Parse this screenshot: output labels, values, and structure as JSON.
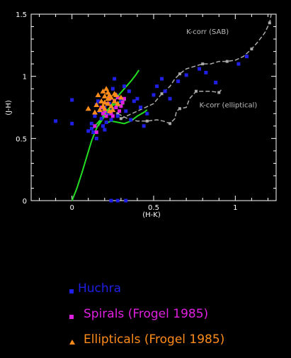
{
  "chart_data": {
    "type": "scatter",
    "title": "",
    "xlabel": "(H-K)",
    "ylabel": "(J-H)",
    "xlim": [
      -0.25,
      1.25
    ],
    "ylim": [
      0,
      1.5
    ],
    "x_ticks": [
      "0",
      "0.5",
      "1"
    ],
    "y_ticks": [
      "0",
      "0.5",
      "1",
      "1.5"
    ],
    "grid": false,
    "series": [
      {
        "name": "Huchra",
        "marker": "square",
        "color": "#1f1fe6",
        "points": [
          [
            0,
            0.81
          ],
          [
            -0.1,
            0.64
          ],
          [
            0.12,
            0.58
          ],
          [
            0.1,
            0.56
          ],
          [
            0.12,
            0.62
          ],
          [
            0.14,
            0.68
          ],
          [
            0.15,
            0.77
          ],
          [
            0.16,
            0.8
          ],
          [
            0.17,
            0.72
          ],
          [
            0.18,
            0.66
          ],
          [
            0.19,
            0.6
          ],
          [
            0.2,
            0.75
          ],
          [
            0.21,
            0.63
          ],
          [
            0.22,
            0.7
          ],
          [
            0.23,
            0.78
          ],
          [
            0.24,
            0.65
          ],
          [
            0.25,
            0.74
          ],
          [
            0.25,
            0.9
          ],
          [
            0.27,
            0.85
          ],
          [
            0.28,
            0.68
          ],
          [
            0.3,
            0.8
          ],
          [
            0.32,
            0.92
          ],
          [
            0.33,
            0.72
          ],
          [
            0.35,
            0.88
          ],
          [
            0.36,
            0.65
          ],
          [
            0.38,
            0.8
          ],
          [
            0.4,
            0.82
          ],
          [
            0.42,
            0.75
          ],
          [
            0.44,
            0.6
          ],
          [
            0.46,
            0.7
          ],
          [
            0.5,
            0.85
          ],
          [
            0.52,
            0.92
          ],
          [
            0.55,
            0.98
          ],
          [
            0.57,
            0.88
          ],
          [
            0.6,
            0.82
          ],
          [
            0.65,
            0.96
          ],
          [
            0.7,
            1.01
          ],
          [
            0.78,
            1.06
          ],
          [
            0.82,
            1.03
          ],
          [
            0.88,
            0.95
          ],
          [
            1.02,
            1.1
          ],
          [
            1.07,
            1.16
          ],
          [
            0.0,
            0.62
          ],
          [
            0.15,
            0.5
          ],
          [
            0.28,
            0.0
          ],
          [
            0.24,
            0.0
          ],
          [
            0.33,
            0.0
          ],
          [
            0.2,
            0.57
          ],
          [
            0.26,
            0.98
          ],
          [
            0.13,
            0.55
          ]
        ]
      },
      {
        "name": "Spirals (Frogel 1985)",
        "marker": "square",
        "color": "#e020e0",
        "points": [
          [
            0.18,
            0.75
          ],
          [
            0.2,
            0.72
          ],
          [
            0.22,
            0.78
          ],
          [
            0.24,
            0.7
          ],
          [
            0.26,
            0.8
          ],
          [
            0.28,
            0.83
          ],
          [
            0.3,
            0.76
          ],
          [
            0.32,
            0.82
          ],
          [
            0.29,
            0.72
          ],
          [
            0.25,
            0.68
          ],
          [
            0.27,
            0.75
          ],
          [
            0.21,
            0.68
          ],
          [
            0.23,
            0.82
          ],
          [
            0.19,
            0.7
          ],
          [
            0.31,
            0.79
          ],
          [
            0.15,
            0.55
          ],
          [
            0.14,
            0.6
          ]
        ]
      },
      {
        "name": "Ellipticals (Frogel 1985)",
        "marker": "triangle",
        "color": "#ff8c1a",
        "points": [
          [
            0.1,
            0.74
          ],
          [
            0.15,
            0.77
          ],
          [
            0.18,
            0.8
          ],
          [
            0.2,
            0.84
          ],
          [
            0.22,
            0.87
          ],
          [
            0.2,
            0.79
          ],
          [
            0.22,
            0.82
          ],
          [
            0.24,
            0.76
          ],
          [
            0.26,
            0.8
          ],
          [
            0.25,
            0.73
          ],
          [
            0.22,
            0.78
          ],
          [
            0.19,
            0.76
          ],
          [
            0.17,
            0.73
          ],
          [
            0.19,
            0.88
          ],
          [
            0.21,
            0.9
          ],
          [
            0.23,
            0.85
          ],
          [
            0.16,
            0.85
          ],
          [
            0.14,
            0.71
          ],
          [
            0.2,
            0.74
          ],
          [
            0.23,
            0.72
          ],
          [
            0.24,
            0.83
          ],
          [
            0.27,
            0.85
          ],
          [
            0.28,
            0.78
          ],
          [
            0.26,
            0.86
          ],
          [
            0.3,
            0.83
          ]
        ]
      }
    ],
    "curves": [
      {
        "color": "#22dd22",
        "points": [
          [
            0,
            0
          ],
          [
            0.03,
            0.1
          ],
          [
            0.06,
            0.22
          ],
          [
            0.09,
            0.35
          ],
          [
            0.12,
            0.48
          ],
          [
            0.15,
            0.58
          ],
          [
            0.18,
            0.66
          ],
          [
            0.21,
            0.72
          ],
          [
            0.24,
            0.76
          ],
          [
            0.27,
            0.78
          ],
          [
            0.3,
            0.8
          ],
          [
            0.33,
            0.81
          ]
        ]
      },
      {
        "color": "#22dd22",
        "points": [
          [
            0.16,
            0.6
          ],
          [
            0.2,
            0.68
          ],
          [
            0.24,
            0.76
          ],
          [
            0.28,
            0.84
          ],
          [
            0.32,
            0.9
          ],
          [
            0.36,
            0.96
          ],
          [
            0.39,
            1.01
          ],
          [
            0.41,
            1.05
          ]
        ]
      },
      {
        "color": "#22dd22",
        "points": [
          [
            0.2,
            0.62
          ],
          [
            0.24,
            0.64
          ],
          [
            0.28,
            0.63
          ],
          [
            0.32,
            0.62
          ],
          [
            0.36,
            0.64
          ],
          [
            0.4,
            0.68
          ],
          [
            0.44,
            0.71
          ],
          [
            0.46,
            0.73
          ]
        ]
      },
      {
        "color": "#22dd22",
        "points": [
          [
            0.12,
            0.57
          ],
          [
            0.16,
            0.63
          ],
          [
            0.2,
            0.69
          ],
          [
            0.24,
            0.73
          ],
          [
            0.28,
            0.76
          ],
          [
            0.32,
            0.78
          ]
        ]
      }
    ],
    "k_corr_sab": {
      "color": "#aaaaaa",
      "points": [
        [
          0.3,
          0.66
        ],
        [
          0.4,
          0.72
        ],
        [
          0.5,
          0.78
        ],
        [
          0.55,
          0.86
        ],
        [
          0.6,
          0.92
        ],
        [
          0.63,
          0.98
        ],
        [
          0.66,
          1.02
        ],
        [
          0.7,
          1.06
        ],
        [
          0.75,
          1.08
        ],
        [
          0.8,
          1.1
        ],
        [
          0.85,
          1.1
        ],
        [
          0.9,
          1.12
        ],
        [
          0.95,
          1.12
        ],
        [
          1.0,
          1.13
        ],
        [
          1.05,
          1.16
        ],
        [
          1.1,
          1.22
        ],
        [
          1.14,
          1.28
        ],
        [
          1.18,
          1.35
        ],
        [
          1.21,
          1.43
        ],
        [
          1.22,
          1.5
        ]
      ]
    },
    "k_corr_elliptical": {
      "color": "#aaaaaa",
      "points": [
        [
          0.28,
          0.7
        ],
        [
          0.34,
          0.66
        ],
        [
          0.4,
          0.64
        ],
        [
          0.46,
          0.64
        ],
        [
          0.52,
          0.65
        ],
        [
          0.56,
          0.64
        ],
        [
          0.6,
          0.62
        ],
        [
          0.63,
          0.66
        ],
        [
          0.64,
          0.72
        ],
        [
          0.66,
          0.74
        ],
        [
          0.7,
          0.75
        ],
        [
          0.72,
          0.82
        ],
        [
          0.76,
          0.88
        ],
        [
          0.8,
          0.88
        ],
        [
          0.85,
          0.88
        ],
        [
          0.9,
          0.87
        ],
        [
          0.92,
          0.9
        ]
      ]
    },
    "annotations": [
      {
        "text": "K-corr (SAB)",
        "x": 0.7,
        "y": 1.34,
        "color": "#bbbbbb"
      },
      {
        "text": "K-corr (elliptical)",
        "x": 0.78,
        "y": 0.75,
        "color": "#bbbbbb"
      }
    ],
    "legend_position": "bottom"
  }
}
